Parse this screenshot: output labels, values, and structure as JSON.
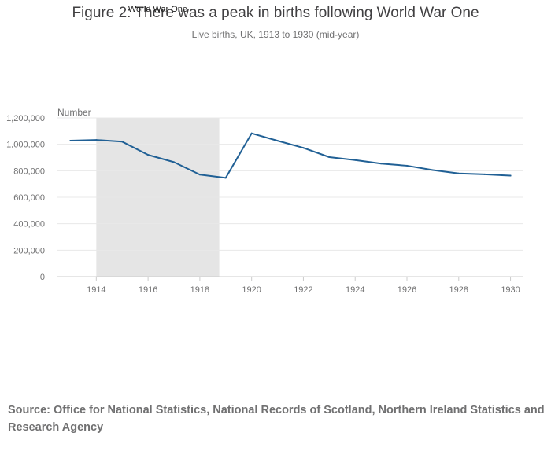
{
  "title": "Figure 2: There was a peak in births following World War One",
  "subtitle": "Live births, UK, 1913 to 1930 (mid-year)",
  "source": "Source: Office for National Statistics, National Records of Scotland, Northern Ireland Statistics and Research Agency",
  "colors": {
    "line": "#206095",
    "band": "#e5e5e5",
    "grid": "#e8e8e8",
    "axis_text": "#707071"
  },
  "chart_data": {
    "type": "line",
    "ylabel": "Number",
    "xlim": [
      1912.5,
      1930.5
    ],
    "ylim": [
      0,
      1200000
    ],
    "yticks": [
      {
        "value": 0,
        "label": "0"
      },
      {
        "value": 200000,
        "label": "200,000"
      },
      {
        "value": 400000,
        "label": "400,000"
      },
      {
        "value": 600000,
        "label": "600,000"
      },
      {
        "value": 800000,
        "label": "800,000"
      },
      {
        "value": 1000000,
        "label": "1,000,000"
      },
      {
        "value": 1200000,
        "label": "1,200,000"
      }
    ],
    "xticks": [
      {
        "value": 1914,
        "label": "1914"
      },
      {
        "value": 1916,
        "label": "1916"
      },
      {
        "value": 1918,
        "label": "1918"
      },
      {
        "value": 1920,
        "label": "1920"
      },
      {
        "value": 1922,
        "label": "1922"
      },
      {
        "value": 1924,
        "label": "1924"
      },
      {
        "value": 1926,
        "label": "1926"
      },
      {
        "value": 1928,
        "label": "1928"
      },
      {
        "value": 1930,
        "label": "1930"
      }
    ],
    "x": [
      1913,
      1914,
      1915,
      1916,
      1917,
      1918,
      1919,
      1920,
      1921,
      1922,
      1923,
      1924,
      1925,
      1926,
      1927,
      1928,
      1929,
      1930
    ],
    "series": [
      {
        "values": [
          1028000,
          1033000,
          1020000,
          920000,
          865000,
          771000,
          746000,
          1083000,
          1027000,
          973000,
          903000,
          881000,
          854000,
          838000,
          805000,
          780000,
          773000,
          763000
        ]
      }
    ],
    "annotations": [
      {
        "label": "World War One",
        "x_start": 1914,
        "x_end": 1918.75
      }
    ],
    "grid": true
  }
}
